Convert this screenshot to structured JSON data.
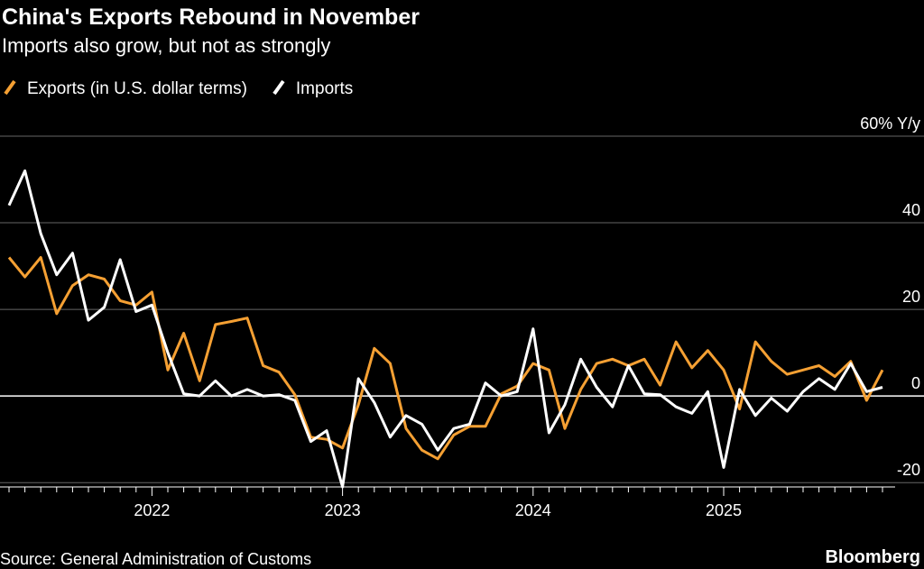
{
  "chart_data": {
    "type": "line",
    "title": "China's Exports Rebound in November",
    "subtitle": "Imports also grow, but not as strongly",
    "source": "Source: General Administration of Customs",
    "credit": "Bloomberg",
    "categories": [
      null,
      null,
      null,
      null,
      null,
      null,
      null,
      null,
      null,
      "2022",
      null,
      null,
      null,
      null,
      null,
      null,
      null,
      null,
      null,
      null,
      null,
      "2023",
      null,
      null,
      null,
      null,
      null,
      null,
      null,
      null,
      null,
      null,
      null,
      "2024",
      null,
      null,
      null,
      null,
      null,
      null,
      null,
      null,
      null,
      null,
      null,
      "2025",
      null,
      null,
      null,
      null,
      null,
      null,
      null,
      null,
      null,
      null
    ],
    "series": [
      {
        "name": "Exports (in U.S. dollar terms)",
        "color": "#f5a033",
        "values": [
          32,
          27.5,
          32,
          19,
          25.5,
          28,
          27,
          22,
          21,
          24,
          6,
          14.5,
          3.5,
          16.5,
          17.2,
          18,
          7,
          5.5,
          0.3,
          -9.5,
          -10,
          -12,
          -2,
          11,
          7.5,
          -7.5,
          -12.5,
          -14.5,
          -9,
          -7,
          -7,
          0.5,
          2.3,
          7.5,
          6,
          -7.5,
          1.5,
          7.5,
          8.5,
          7,
          8.5,
          2.5,
          12.5,
          6.5,
          10.5,
          6,
          -3,
          12.5,
          8,
          5,
          6,
          7,
          4.5,
          8,
          -1,
          6
        ]
      },
      {
        "name": "Imports",
        "color": "#ffffff",
        "values": [
          44,
          52,
          37.5,
          28,
          33,
          17.5,
          20.5,
          31.5,
          19.5,
          21,
          10,
          0.5,
          0,
          3.5,
          0,
          1.5,
          0,
          0.3,
          -1,
          -10.5,
          -8,
          -21,
          4,
          -1.5,
          -9.5,
          -4.5,
          -6.5,
          -12.5,
          -7.5,
          -6.5,
          3,
          0,
          1,
          15.5,
          -8.5,
          -2,
          8.5,
          2,
          -2.5,
          7,
          0.5,
          0.3,
          -2.5,
          -4,
          1,
          -16.5,
          1.5,
          -4.5,
          -0.5,
          -3.5,
          1,
          4,
          1.5,
          7.5,
          1,
          2
        ]
      }
    ],
    "ylim": [
      -21,
      60
    ],
    "yticks": [
      {
        "value": 60,
        "label": "60% Y/y"
      },
      40,
      20,
      0,
      -20
    ],
    "grid": true
  }
}
